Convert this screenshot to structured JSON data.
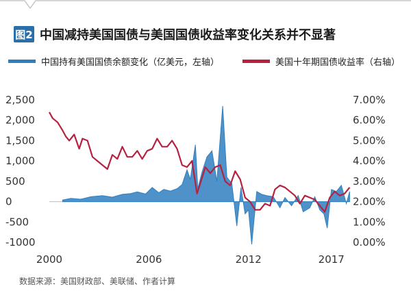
{
  "header": {
    "fig_label": "图2",
    "title": "中国减持美国国债与美国国债收益率变化关系并不显著"
  },
  "legend": {
    "series1": "中国持有美国国债余额变化（亿美元，左轴）",
    "series2": "美国十年期国债收益率（右轴）"
  },
  "source": "数据来源：美国财政部、美联储、作者计算",
  "colors": {
    "series1": "#2f7fc0",
    "series2": "#b5213f",
    "badge": "#2a6fa8",
    "zero_line": "#bbbbbb"
  },
  "chart_data": {
    "type": "line",
    "x_unit": "year",
    "xlim": [
      2000,
      2018
    ],
    "x_ticks": [
      "2000",
      "2006",
      "2012",
      "2017"
    ],
    "x_tick_values": [
      2000,
      2006,
      2012,
      2017
    ],
    "y_left_ticks": [
      "2,500",
      "2,000",
      "1,500",
      "1,000",
      "500",
      "0",
      "-500",
      "-1000"
    ],
    "y_left_tick_values": [
      2500,
      2000,
      1500,
      1000,
      500,
      0,
      -500,
      -1000
    ],
    "y_left_lim": [
      -1000,
      2500
    ],
    "y_right_ticks": [
      "7.00%",
      "6.00%",
      "5.00%",
      "4.00%",
      "3.00%",
      "2.00%",
      "1.00%",
      "0.00%"
    ],
    "y_right_tick_values": [
      7,
      6,
      5,
      4,
      3,
      2,
      1,
      0
    ],
    "y_right_lim": [
      0,
      7
    ],
    "grid": false,
    "series": [
      {
        "name": "中国持有美国国债余额变化（亿美元，左轴）",
        "axis": "left",
        "style": "area",
        "x": [
          2000.8,
          2001.3,
          2001.9,
          2002.5,
          2003.2,
          2003.8,
          2004.4,
          2004.9,
          2005.3,
          2005.8,
          2006.2,
          2006.6,
          2006.9,
          2007.3,
          2007.7,
          2008.0,
          2008.3,
          2008.5,
          2008.8,
          2008.95,
          2009.2,
          2009.5,
          2009.8,
          2010.1,
          2010.45,
          2010.7,
          2011.0,
          2011.3,
          2011.55,
          2011.8,
          2012.0,
          2012.2,
          2012.5,
          2012.8,
          2013.1,
          2013.5,
          2013.9,
          2014.2,
          2014.6,
          2015.0,
          2015.3,
          2015.7,
          2016.0,
          2016.3,
          2016.55,
          2016.75,
          2017.0,
          2017.3,
          2017.6,
          2017.9,
          2018.1
        ],
        "values": [
          40,
          80,
          60,
          120,
          150,
          110,
          180,
          200,
          240,
          190,
          350,
          220,
          300,
          260,
          320,
          420,
          780,
          550,
          1400,
          320,
          720,
          1100,
          1250,
          500,
          2350,
          600,
          450,
          -600,
          350,
          -300,
          -200,
          -1050,
          250,
          180,
          150,
          120,
          -150,
          100,
          -100,
          150,
          -250,
          -150,
          120,
          -200,
          -300,
          -650,
          300,
          250,
          400,
          -50,
          250
        ]
      },
      {
        "name": "美国十年期国债收益率（右轴）",
        "axis": "right",
        "style": "line",
        "x": [
          2000.0,
          2000.2,
          2000.5,
          2000.8,
          2001.0,
          2001.2,
          2001.5,
          2001.8,
          2002.0,
          2002.3,
          2002.6,
          2002.9,
          2003.2,
          2003.5,
          2003.8,
          2004.1,
          2004.4,
          2004.7,
          2005.0,
          2005.3,
          2005.6,
          2005.9,
          2006.2,
          2006.5,
          2006.8,
          2007.1,
          2007.4,
          2007.7,
          2008.0,
          2008.3,
          2008.6,
          2008.9,
          2009.1,
          2009.4,
          2009.7,
          2010.0,
          2010.3,
          2010.6,
          2010.9,
          2011.2,
          2011.5,
          2011.8,
          2012.1,
          2012.4,
          2012.7,
          2013.0,
          2013.3,
          2013.6,
          2013.9,
          2014.2,
          2014.5,
          2014.8,
          2015.1,
          2015.4,
          2015.7,
          2016.0,
          2016.3,
          2016.6,
          2016.9,
          2017.2,
          2017.5,
          2017.8,
          2018.1
        ],
        "values": [
          6.4,
          6.1,
          5.9,
          5.5,
          5.2,
          5.0,
          5.3,
          4.6,
          5.1,
          5.0,
          4.2,
          4.0,
          3.8,
          3.6,
          4.3,
          4.1,
          4.7,
          4.2,
          4.2,
          4.5,
          4.1,
          4.5,
          4.6,
          5.1,
          4.7,
          4.7,
          5.0,
          4.6,
          3.8,
          3.7,
          4.0,
          2.4,
          2.9,
          3.7,
          3.4,
          3.7,
          3.8,
          3.0,
          2.8,
          3.5,
          3.1,
          2.2,
          2.0,
          1.6,
          1.6,
          1.9,
          1.8,
          2.6,
          2.8,
          2.7,
          2.5,
          2.3,
          1.9,
          2.3,
          2.2,
          2.1,
          1.8,
          1.5,
          2.2,
          2.5,
          2.3,
          2.4,
          2.7
        ]
      }
    ]
  }
}
